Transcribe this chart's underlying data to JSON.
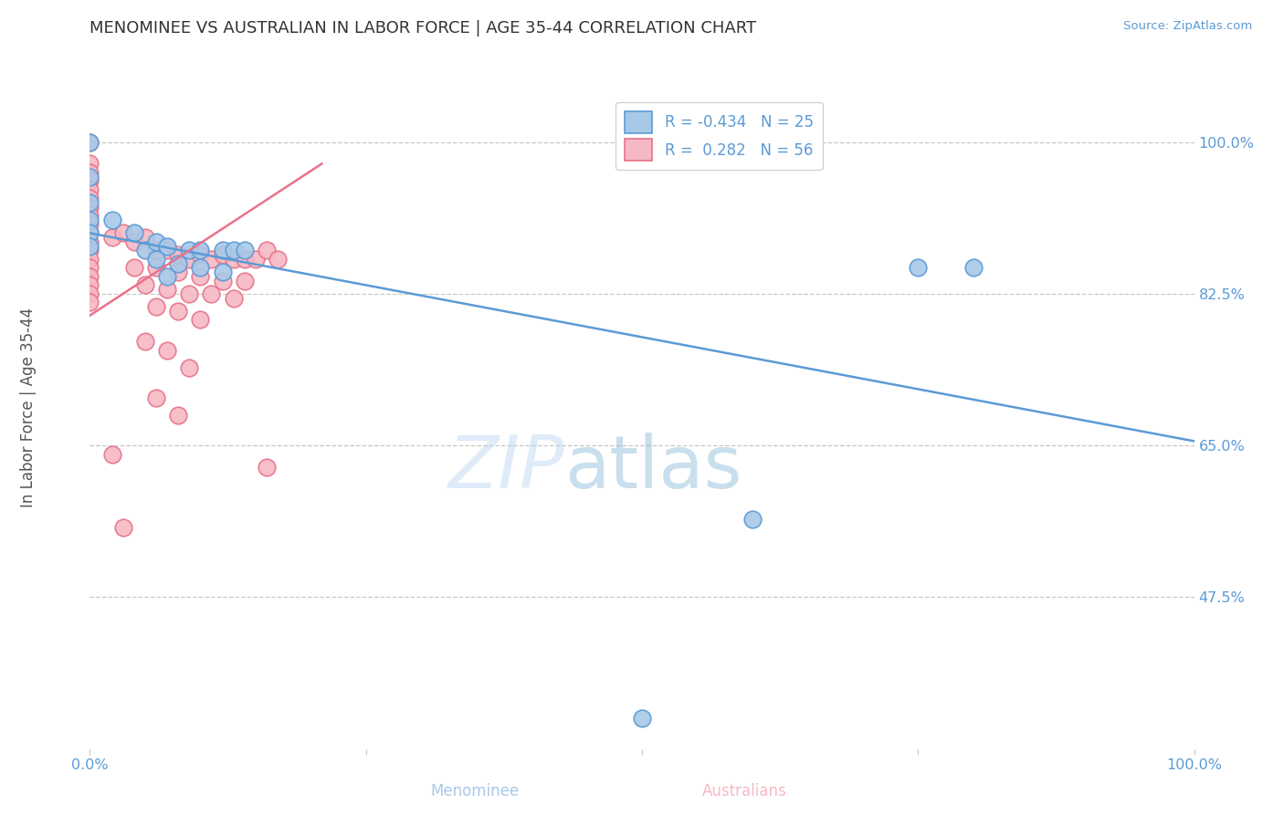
{
  "title": "MENOMINEE VS AUSTRALIAN IN LABOR FORCE | AGE 35-44 CORRELATION CHART",
  "source_text": "Source: ZipAtlas.com",
  "ylabel": "In Labor Force | Age 35-44",
  "watermark_part1": "ZIP",
  "watermark_part2": "atlas",
  "legend_blue_r": "-0.434",
  "legend_blue_n": "25",
  "legend_pink_r": " 0.282",
  "legend_pink_n": "56",
  "xlim": [
    0.0,
    1.0
  ],
  "ylim": [
    0.3,
    1.07
  ],
  "ytick_values": [
    1.0,
    0.825,
    0.65,
    0.475
  ],
  "ytick_labels": [
    "100.0%",
    "82.5%",
    "65.0%",
    "47.5%"
  ],
  "title_color": "#333333",
  "title_fontsize": 13,
  "blue_color": "#a8c8e8",
  "pink_color": "#f5b8c4",
  "blue_edge_color": "#5b9bd5",
  "pink_edge_color": "#e8728a",
  "blue_line_color": "#5b9bd5",
  "pink_line_color": "#e8728a",
  "grid_color": "#c8c8c8",
  "background_color": "#ffffff",
  "source_color": "#5b9bd5",
  "tick_color": "#5b9bd5",
  "ylabel_color": "#555555",
  "blue_points": [
    [
      0.0,
      1.0
    ],
    [
      0.0,
      0.96
    ],
    [
      0.0,
      0.93
    ],
    [
      0.0,
      0.91
    ],
    [
      0.0,
      0.895
    ],
    [
      0.0,
      0.88
    ],
    [
      0.02,
      0.91
    ],
    [
      0.04,
      0.895
    ],
    [
      0.05,
      0.875
    ],
    [
      0.06,
      0.885
    ],
    [
      0.07,
      0.88
    ],
    [
      0.09,
      0.875
    ],
    [
      0.1,
      0.875
    ],
    [
      0.12,
      0.875
    ],
    [
      0.13,
      0.875
    ],
    [
      0.14,
      0.875
    ],
    [
      0.06,
      0.865
    ],
    [
      0.08,
      0.86
    ],
    [
      0.1,
      0.855
    ],
    [
      0.12,
      0.85
    ],
    [
      0.07,
      0.845
    ],
    [
      0.75,
      0.855
    ],
    [
      0.8,
      0.855
    ],
    [
      0.6,
      0.565
    ],
    [
      0.5,
      0.335
    ]
  ],
  "pink_points": [
    [
      0.0,
      1.0
    ],
    [
      0.0,
      0.975
    ],
    [
      0.0,
      0.965
    ],
    [
      0.0,
      0.955
    ],
    [
      0.0,
      0.945
    ],
    [
      0.0,
      0.935
    ],
    [
      0.0,
      0.925
    ],
    [
      0.0,
      0.915
    ],
    [
      0.0,
      0.905
    ],
    [
      0.0,
      0.895
    ],
    [
      0.0,
      0.885
    ],
    [
      0.0,
      0.875
    ],
    [
      0.0,
      0.865
    ],
    [
      0.0,
      0.855
    ],
    [
      0.0,
      0.845
    ],
    [
      0.0,
      0.835
    ],
    [
      0.0,
      0.825
    ],
    [
      0.0,
      0.815
    ],
    [
      0.02,
      0.89
    ],
    [
      0.03,
      0.895
    ],
    [
      0.04,
      0.885
    ],
    [
      0.05,
      0.89
    ],
    [
      0.06,
      0.875
    ],
    [
      0.07,
      0.875
    ],
    [
      0.08,
      0.87
    ],
    [
      0.09,
      0.865
    ],
    [
      0.1,
      0.87
    ],
    [
      0.11,
      0.865
    ],
    [
      0.12,
      0.87
    ],
    [
      0.13,
      0.865
    ],
    [
      0.14,
      0.865
    ],
    [
      0.15,
      0.865
    ],
    [
      0.16,
      0.875
    ],
    [
      0.17,
      0.865
    ],
    [
      0.04,
      0.855
    ],
    [
      0.06,
      0.855
    ],
    [
      0.08,
      0.85
    ],
    [
      0.1,
      0.845
    ],
    [
      0.12,
      0.84
    ],
    [
      0.14,
      0.84
    ],
    [
      0.05,
      0.835
    ],
    [
      0.07,
      0.83
    ],
    [
      0.09,
      0.825
    ],
    [
      0.11,
      0.825
    ],
    [
      0.13,
      0.82
    ],
    [
      0.06,
      0.81
    ],
    [
      0.08,
      0.805
    ],
    [
      0.1,
      0.795
    ],
    [
      0.05,
      0.77
    ],
    [
      0.07,
      0.76
    ],
    [
      0.09,
      0.74
    ],
    [
      0.06,
      0.705
    ],
    [
      0.08,
      0.685
    ],
    [
      0.02,
      0.64
    ],
    [
      0.16,
      0.625
    ],
    [
      0.03,
      0.555
    ]
  ],
  "blue_trendline_x": [
    0.0,
    1.0
  ],
  "blue_trendline_y": [
    0.895,
    0.655
  ],
  "pink_trendline_x": [
    0.0,
    0.21
  ],
  "pink_trendline_y": [
    0.8,
    0.975
  ]
}
